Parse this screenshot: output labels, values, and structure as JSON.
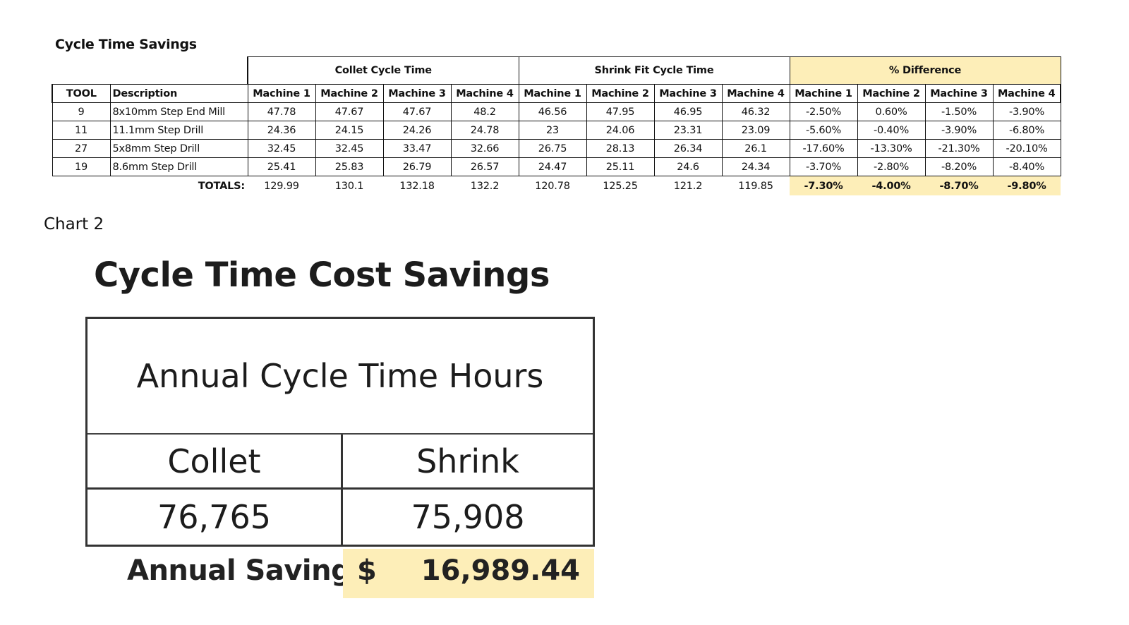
{
  "table1": {
    "title": "Cycle Time Savings",
    "group_headers": [
      "Collet Cycle Time",
      "Shrink Fit Cycle Time",
      "% Difference"
    ],
    "col_tool": "TOOL",
    "col_desc": "Description",
    "machines": [
      "Machine 1",
      "Machine 2",
      "Machine 3",
      "Machine 4"
    ],
    "rows": [
      {
        "tool": "9",
        "desc": "8x10mm Step End Mill",
        "collet": [
          "47.78",
          "47.67",
          "47.67",
          "48.2"
        ],
        "shrink": [
          "46.56",
          "47.95",
          "46.95",
          "46.32"
        ],
        "pct": [
          "-2.50%",
          "0.60%",
          "-1.50%",
          "-3.90%"
        ]
      },
      {
        "tool": "11",
        "desc": "11.1mm Step Drill",
        "collet": [
          "24.36",
          "24.15",
          "24.26",
          "24.78"
        ],
        "shrink": [
          "23",
          "24.06",
          "23.31",
          "23.09"
        ],
        "pct": [
          "-5.60%",
          "-0.40%",
          "-3.90%",
          "-6.80%"
        ]
      },
      {
        "tool": "27",
        "desc": "5x8mm Step Drill",
        "collet": [
          "32.45",
          "32.45",
          "33.47",
          "32.66"
        ],
        "shrink": [
          "26.75",
          "28.13",
          "26.34",
          "26.1"
        ],
        "pct": [
          "-17.60%",
          "-13.30%",
          "-21.30%",
          "-20.10%"
        ]
      },
      {
        "tool": "19",
        "desc": "8.6mm Step Drill",
        "collet": [
          "25.41",
          "25.83",
          "26.79",
          "26.57"
        ],
        "shrink": [
          "24.47",
          "25.11",
          "24.6",
          "24.34"
        ],
        "pct": [
          "-3.70%",
          "-2.80%",
          "-8.20%",
          "-8.40%"
        ]
      }
    ],
    "totals_label": "TOTALS:",
    "totals": {
      "collet": [
        "129.99",
        "130.1",
        "132.18",
        "132.2"
      ],
      "shrink": [
        "120.78",
        "125.25",
        "121.2",
        "119.85"
      ],
      "pct": [
        "-7.30%",
        "-4.00%",
        "-8.70%",
        "-9.80%"
      ]
    },
    "highlight_color": "#fdeeb8"
  },
  "chart_caption": "Chart 2",
  "cost_savings": {
    "title": "Cycle Time Cost Savings",
    "box_header": "Annual Cycle Time Hours",
    "collet_label": "Collet",
    "shrink_label": "Shrink",
    "collet_value": "76,765",
    "shrink_value": "75,908",
    "savings_label": "Annual Savings:",
    "savings_currency": "$",
    "savings_value": "16,989.44"
  }
}
